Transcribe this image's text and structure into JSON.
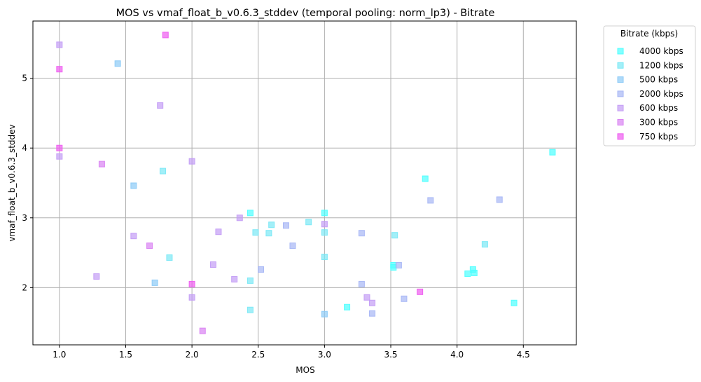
{
  "chart_data": {
    "type": "scatter",
    "title": "MOS vs vmaf_float_b_v0.6.3_stddev (temporal pooling: norm_lp3) - Bitrate",
    "xlabel": "MOS",
    "ylabel": "vmaf_float_b_v0.6.3_stddev",
    "xlim": [
      0.8,
      4.9
    ],
    "ylim": [
      1.18,
      5.82
    ],
    "xticks": [
      "1.0",
      "1.5",
      "2.0",
      "2.5",
      "3.0",
      "3.5",
      "4.0",
      "4.5"
    ],
    "yticks": [
      "2",
      "3",
      "4",
      "5"
    ],
    "grid": true,
    "marker": "square",
    "legend": {
      "title": "Bitrate (kbps)",
      "position": "outside-right"
    },
    "series": [
      {
        "name": "4000 kbps",
        "color": "#4dffff",
        "points": [
          [
            4.72,
            3.94
          ],
          [
            3.76,
            3.56
          ],
          [
            3.52,
            2.32
          ],
          [
            3.52,
            2.29
          ],
          [
            4.08,
            2.2
          ],
          [
            4.12,
            2.26
          ],
          [
            4.13,
            2.21
          ],
          [
            4.43,
            1.78
          ],
          [
            3.17,
            1.72
          ],
          [
            3.0,
            3.07
          ],
          [
            2.44,
            3.07
          ]
        ]
      },
      {
        "name": "1200 kbps",
        "color": "#7ae8f5",
        "points": [
          [
            1.78,
            3.67
          ],
          [
            2.6,
            2.9
          ],
          [
            2.48,
            2.79
          ],
          [
            2.58,
            2.78
          ],
          [
            2.88,
            2.94
          ],
          [
            3.0,
            2.79
          ],
          [
            3.0,
            2.44
          ],
          [
            1.83,
            2.43
          ],
          [
            2.44,
            2.1
          ],
          [
            2.44,
            1.68
          ],
          [
            3.53,
            2.75
          ],
          [
            4.21,
            2.62
          ]
        ]
      },
      {
        "name": "500 kbps",
        "color": "#8ccaf7",
        "points": [
          [
            1.44,
            5.21
          ],
          [
            1.56,
            3.46
          ],
          [
            1.72,
            2.07
          ],
          [
            3.0,
            1.62
          ]
        ]
      },
      {
        "name": "2000 kbps",
        "color": "#a6b6f5",
        "points": [
          [
            3.8,
            3.25
          ],
          [
            4.32,
            3.26
          ],
          [
            2.71,
            2.89
          ],
          [
            2.76,
            2.6
          ],
          [
            2.52,
            2.26
          ],
          [
            3.28,
            2.78
          ],
          [
            3.28,
            2.05
          ],
          [
            3.36,
            1.63
          ],
          [
            3.6,
            1.84
          ],
          [
            3.56,
            2.32
          ]
        ]
      },
      {
        "name": "600 kbps",
        "color": "#c39cf5",
        "points": [
          [
            1.0,
            5.48
          ],
          [
            1.76,
            4.61
          ],
          [
            1.0,
            3.88
          ],
          [
            2.0,
            3.81
          ],
          [
            2.36,
            3.0
          ],
          [
            2.2,
            2.8
          ],
          [
            1.56,
            2.74
          ],
          [
            2.16,
            2.33
          ],
          [
            2.32,
            2.12
          ],
          [
            1.28,
            2.16
          ],
          [
            2.0,
            1.86
          ],
          [
            3.0,
            2.91
          ],
          [
            3.32,
            1.86
          ],
          [
            3.36,
            1.78
          ]
        ]
      },
      {
        "name": "300 kbps",
        "color": "#d982f2",
        "points": [
          [
            1.32,
            3.77
          ],
          [
            1.68,
            2.6
          ],
          [
            2.08,
            1.38
          ]
        ]
      },
      {
        "name": "750 kbps",
        "color": "#ee5bf0",
        "points": [
          [
            1.8,
            5.62
          ],
          [
            1.0,
            5.13
          ],
          [
            1.0,
            4.0
          ],
          [
            2.0,
            2.05
          ],
          [
            3.72,
            1.94
          ]
        ]
      }
    ]
  }
}
